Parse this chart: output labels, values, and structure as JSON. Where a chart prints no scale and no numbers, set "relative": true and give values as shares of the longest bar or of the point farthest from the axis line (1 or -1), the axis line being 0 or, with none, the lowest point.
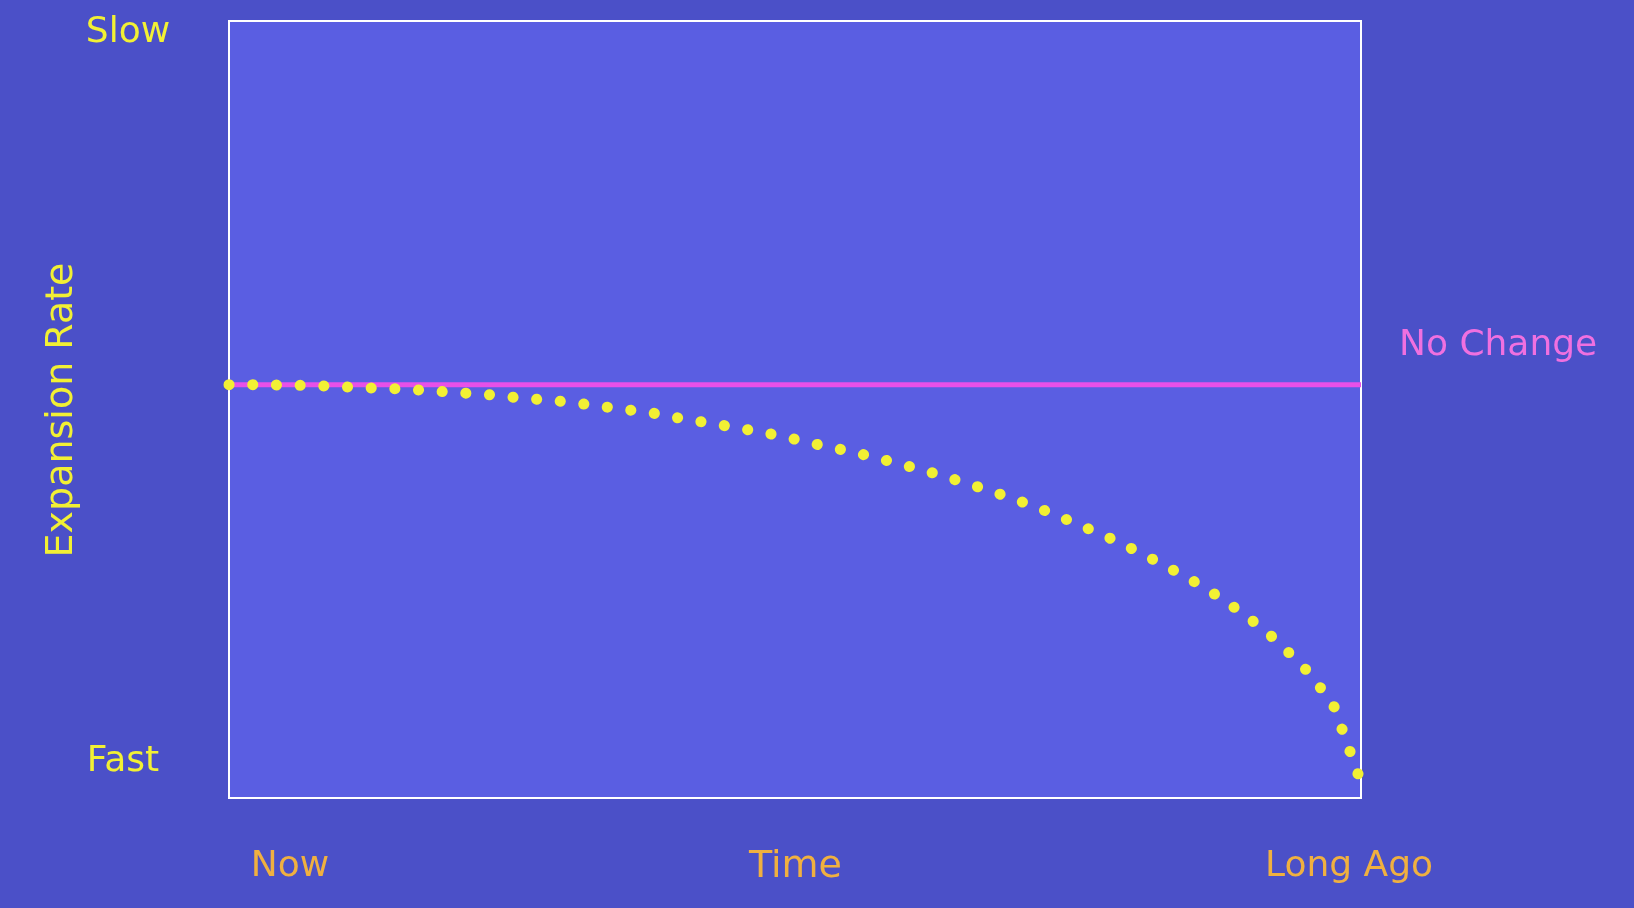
{
  "chart_data": {
    "type": "line",
    "xlabel": "Time",
    "ylabel": "Expansion Rate",
    "relative": true,
    "annotations": [
      "Slow",
      "Fast",
      "Now",
      "Long Ago"
    ],
    "categories": [
      null,
      null,
      null,
      null,
      null,
      null,
      null,
      null,
      null,
      null,
      null,
      null,
      null,
      null,
      null,
      null,
      null,
      null,
      null,
      null,
      null,
      null,
      null,
      null,
      null,
      null,
      null,
      null,
      null,
      null,
      null,
      null,
      null,
      null,
      null,
      null,
      null,
      null,
      null,
      null,
      null
    ],
    "series": [
      {
        "color": "#f2f034",
        "values": [
          1.0,
          1.0,
          0.999,
          0.998,
          0.995,
          0.992,
          0.99,
          0.986,
          0.981,
          0.977,
          0.97,
          0.964,
          0.958,
          0.949,
          0.94,
          0.931,
          0.918,
          0.907,
          0.895,
          0.883,
          0.868,
          0.852,
          0.838,
          0.821,
          0.803,
          0.784,
          0.763,
          0.741,
          0.717,
          0.691,
          0.662,
          0.633,
          0.6,
          0.565,
          0.528,
          0.486,
          0.438,
          0.382,
          0.315,
          0.23,
          0.038
        ]
      }
    ],
    "ref_lines": [
      {
        "axis": "y",
        "value": 1.0,
        "label": "No Change",
        "color": "#e850e8"
      }
    ],
    "line_style": "dotted",
    "grid": false
  }
}
